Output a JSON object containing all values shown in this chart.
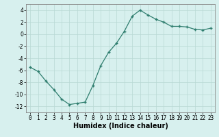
{
  "x": [
    0,
    1,
    2,
    3,
    4,
    5,
    6,
    7,
    8,
    9,
    10,
    11,
    12,
    13,
    14,
    15,
    16,
    17,
    18,
    19,
    20,
    21,
    22,
    23
  ],
  "y": [
    -5.5,
    -6.2,
    -7.8,
    -9.2,
    -10.8,
    -11.7,
    -11.5,
    -11.3,
    -8.5,
    -5.2,
    -3.0,
    -1.5,
    0.5,
    3.0,
    4.0,
    3.2,
    2.5,
    2.0,
    1.3,
    1.3,
    1.2,
    0.8,
    0.7,
    1.0
  ],
  "line_color": "#2e7d6e",
  "marker": "+",
  "marker_size": 3,
  "marker_lw": 1.0,
  "line_width": 0.9,
  "bg_color": "#d7f0ee",
  "grid_color": "#b8d8d4",
  "xlabel": "Humidex (Indice chaleur)",
  "xlabel_fontsize": 7,
  "tick_fontsize": 5.5,
  "xlim": [
    -0.5,
    23.5
  ],
  "ylim": [
    -13,
    5
  ],
  "yticks": [
    -12,
    -10,
    -8,
    -6,
    -4,
    -2,
    0,
    2,
    4
  ],
  "xtick_labels": [
    "0",
    "1",
    "2",
    "3",
    "4",
    "5",
    "6",
    "7",
    "8",
    "9",
    "10",
    "11",
    "12",
    "13",
    "14",
    "15",
    "16",
    "17",
    "18",
    "19",
    "20",
    "21",
    "22",
    "23"
  ]
}
